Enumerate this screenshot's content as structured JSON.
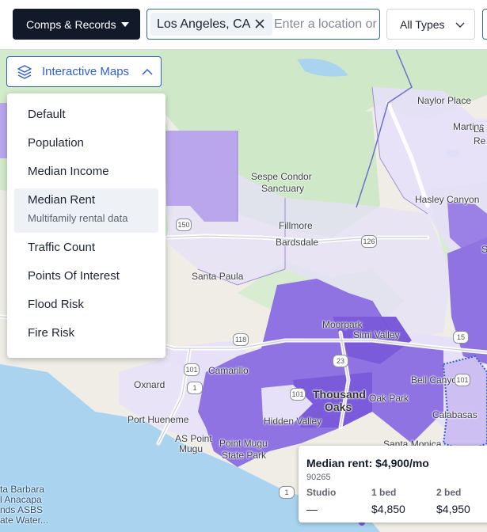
{
  "toolbar": {
    "comps_label": "Comps & Records",
    "location_chip": "Los Angeles, CA",
    "location_placeholder": "Enter a location or",
    "types_label": "All Types"
  },
  "layers_menu": {
    "toggle_label": "Interactive Maps",
    "items": [
      {
        "label": "Default"
      },
      {
        "label": "Population"
      },
      {
        "label": "Median Income"
      },
      {
        "label": "Median Rent",
        "sublabel": "Multifamily rental data",
        "selected": true
      },
      {
        "label": "Traffic Count"
      },
      {
        "label": "Points Of Interest"
      },
      {
        "label": "Flood Risk"
      },
      {
        "label": "Fire Risk"
      }
    ]
  },
  "map": {
    "places": {
      "naylor_place": "Naylor Place",
      "martins": "Martins",
      "lake_hughes_1": "La",
      "lake_hughes_2": "Re",
      "sespe_1": "Sespe Condor",
      "sespe_2": "Sanctuary",
      "hasley_canyon": "Hasley Canyon",
      "fillmore": "Fillmore",
      "bardsdale": "Bardsdale",
      "santa_paula": "Santa Paula",
      "moorpark": "Moorpark",
      "simi_valley": "Simi Valley",
      "camarillo": "Camarillo",
      "oxnard": "Oxnard",
      "port_hueneme": "Port Hueneme",
      "thousand_oaks_1": "Thousand",
      "thousand_oaks_2": "Oaks",
      "oak_park": "Oak Park",
      "hidden_valley": "Hidden Valley",
      "bell_canyon": "Bell Canyon",
      "calabasas": "Calabasas",
      "point_mugu_1": "Point Mugu",
      "point_mugu_2": "State Park",
      "as_point": "AS Point",
      "mugu": "Mugu",
      "santa_monica": "Santa Monica",
      "edge_s": "S"
    },
    "ocean_lines": [
      "ta Barbara",
      "l Anacapa",
      "nds ASBS",
      "ate Water..."
    ],
    "shields": [
      "150",
      "126",
      "118",
      "23",
      "101",
      "101",
      "1",
      "15",
      "101",
      "1"
    ],
    "colors": {
      "land": "#efede6",
      "park": "#cfe9c8",
      "ocean": "#a9d3ef",
      "rent_low": "#e6e0f8",
      "rent_mid": "#cdbff2",
      "rent_high": "#9b80e6",
      "rent_top": "#7b5bd9",
      "accent": "#2f5fd6"
    }
  },
  "rent_popup": {
    "title": "Median rent: $4,900/mo",
    "zip": "90265",
    "columns": [
      {
        "header": "Studio",
        "value": "—"
      },
      {
        "header": "1 bed",
        "value": "$4,850"
      },
      {
        "header": "2 bed",
        "value": "$4,950"
      }
    ]
  }
}
